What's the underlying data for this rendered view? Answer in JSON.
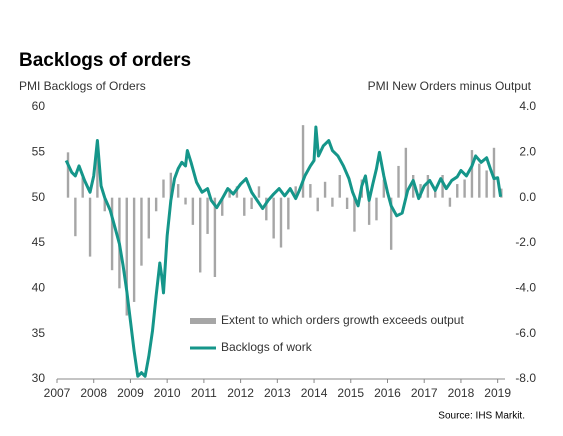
{
  "chart_data": {
    "type": "combo",
    "title": "Backlogs of orders",
    "y_label": "PMI Backlogs of Orders",
    "y2_label": "PMI New Orders minus Output",
    "source": "Source: IHS Markit.",
    "xlim": [
      2007,
      2019.2
    ],
    "xticks": [
      2007,
      2008,
      2009,
      2010,
      2011,
      2012,
      2013,
      2014,
      2015,
      2016,
      2017,
      2018,
      2019
    ],
    "ylim": [
      30,
      60
    ],
    "yticks": [
      30,
      35,
      40,
      45,
      50,
      55,
      60
    ],
    "y2lim": [
      -8,
      4
    ],
    "y2ticks": [
      {
        "value": -8,
        "label": "-8.0"
      },
      {
        "value": -6,
        "label": "-6.0"
      },
      {
        "value": -4,
        "label": "-4.0"
      },
      {
        "value": -2,
        "label": "-2.0"
      },
      {
        "value": 0,
        "label": "0.0"
      },
      {
        "value": 2,
        "label": "2.0"
      },
      {
        "value": 4,
        "label": "4.0"
      }
    ],
    "series": [
      {
        "name": "Extent to which orders growth exceeds output",
        "type": "bar",
        "axis": "y2",
        "color": "#a6a6a6",
        "x": [
          2007.3,
          2007.5,
          2007.7,
          2007.9,
          2008.1,
          2008.3,
          2008.5,
          2008.7,
          2008.9,
          2009.1,
          2009.3,
          2009.5,
          2009.7,
          2009.9,
          2010.1,
          2010.3,
          2010.5,
          2010.7,
          2010.9,
          2011.1,
          2011.3,
          2011.5,
          2011.7,
          2011.9,
          2012.1,
          2012.3,
          2012.5,
          2012.7,
          2012.9,
          2013.1,
          2013.3,
          2013.5,
          2013.7,
          2013.9,
          2014.1,
          2014.3,
          2014.5,
          2014.7,
          2014.9,
          2015.1,
          2015.3,
          2015.5,
          2015.7,
          2015.9,
          2016.1,
          2016.3,
          2016.5,
          2016.7,
          2016.9,
          2017.1,
          2017.3,
          2017.5,
          2017.7,
          2017.9,
          2018.1,
          2018.3,
          2018.5,
          2018.7,
          2018.9,
          2019.1
        ],
        "values": [
          2.0,
          -1.7,
          0.9,
          -2.6,
          2.5,
          -0.6,
          -3.2,
          -4.0,
          -5.2,
          -4.6,
          -3.0,
          -1.8,
          -0.6,
          0.8,
          1.1,
          0.6,
          -0.3,
          -1.2,
          -3.3,
          -1.6,
          -3.5,
          -0.8,
          0.4,
          0.5,
          -0.8,
          -0.5,
          0.5,
          -1.0,
          -1.8,
          -2.2,
          -1.4,
          0.5,
          3.2,
          0.6,
          -0.6,
          0.7,
          -0.4,
          1.0,
          -0.5,
          -1.5,
          0.8,
          -1.2,
          -1.0,
          0.8,
          -2.3,
          1.4,
          2.2,
          1.0,
          0.6,
          1.0,
          0.4,
          1.0,
          -0.4,
          0.6,
          0.8,
          2.1,
          1.5,
          1.2,
          2.2,
          0.4
        ]
      },
      {
        "name": "Backlogs of work",
        "type": "line",
        "axis": "y",
        "color": "#15968a",
        "x": [
          2007.25,
          2007.4,
          2007.5,
          2007.6,
          2007.75,
          2007.9,
          2008.0,
          2008.1,
          2008.2,
          2008.3,
          2008.45,
          2008.6,
          2008.7,
          2008.8,
          2008.9,
          2009.0,
          2009.1,
          2009.2,
          2009.3,
          2009.4,
          2009.5,
          2009.6,
          2009.7,
          2009.8,
          2009.85,
          2009.9,
          2010.0,
          2010.1,
          2010.2,
          2010.3,
          2010.4,
          2010.5,
          2010.55,
          2010.65,
          2010.8,
          2010.95,
          2011.1,
          2011.2,
          2011.35,
          2011.5,
          2011.65,
          2011.8,
          2012.0,
          2012.15,
          2012.3,
          2012.45,
          2012.6,
          2012.75,
          2012.9,
          2013.05,
          2013.2,
          2013.35,
          2013.5,
          2013.6,
          2013.75,
          2013.9,
          2014.0,
          2014.05,
          2014.12,
          2014.25,
          2014.4,
          2014.5,
          2014.65,
          2014.8,
          2014.95,
          2015.05,
          2015.2,
          2015.3,
          2015.4,
          2015.5,
          2015.6,
          2015.7,
          2015.78,
          2015.9,
          2016.0,
          2016.1,
          2016.25,
          2016.4,
          2016.55,
          2016.7,
          2016.85,
          2017.0,
          2017.15,
          2017.3,
          2017.45,
          2017.6,
          2017.75,
          2017.9,
          2018.0,
          2018.15,
          2018.3,
          2018.4,
          2018.55,
          2018.7,
          2018.8,
          2018.9,
          2019.0,
          2019.08
        ],
        "values": [
          54.1,
          52.8,
          52.4,
          53.5,
          51.9,
          50.6,
          52.4,
          56.3,
          51.3,
          50,
          48.6,
          46.4,
          44.9,
          42.5,
          39.7,
          36.4,
          33.1,
          30.3,
          30.7,
          30.3,
          32.5,
          35.3,
          39.2,
          42.8,
          41.4,
          39.5,
          45.8,
          49.7,
          52.1,
          53.2,
          53.9,
          53.5,
          55.2,
          53.9,
          51.7,
          50.6,
          51,
          49.7,
          48.9,
          49.9,
          51,
          50.4,
          51.5,
          52.1,
          50.6,
          49.7,
          48.8,
          49.7,
          50.4,
          51,
          50.2,
          51,
          49.9,
          50.8,
          52.4,
          53.5,
          54.1,
          57.8,
          54.6,
          55.7,
          56.3,
          55.2,
          54.6,
          53.5,
          52.1,
          50.6,
          49.1,
          51.3,
          52.4,
          49.7,
          51.5,
          53.2,
          55,
          52.4,
          50.6,
          49.1,
          48,
          48.3,
          50.8,
          51.9,
          49.9,
          51.3,
          51.9,
          50.8,
          52.1,
          51,
          51.9,
          52.3,
          53,
          52.4,
          53.5,
          54.6,
          53.9,
          54.4,
          53.2,
          52.1,
          52.2,
          50.1
        ]
      }
    ]
  }
}
